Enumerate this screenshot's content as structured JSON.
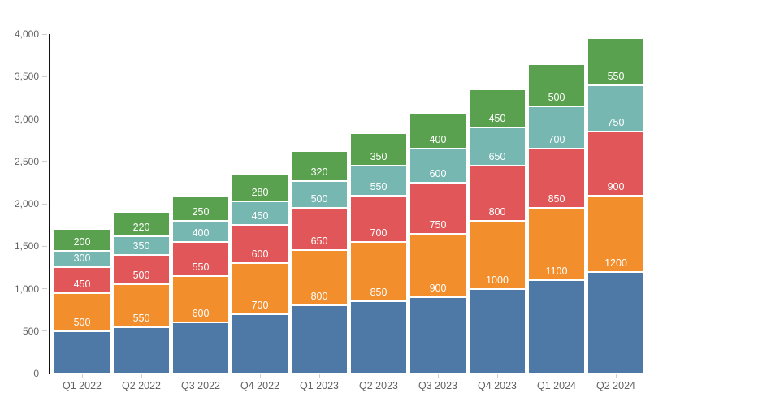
{
  "chart_data": {
    "type": "bar",
    "stacked": true,
    "title": "",
    "xlabel": "",
    "ylabel": "",
    "grid": false,
    "legend": null,
    "background_color": "#ffffff",
    "axis_line_color": "#111111",
    "tick_color": "#cfcfcf",
    "axis_text_color": "#636363",
    "value_label_color": "#ffffff",
    "ylim": [
      0,
      4000
    ],
    "ytick_interval": 500,
    "yticklabels": [
      "0",
      "500",
      "1,000",
      "1,500",
      "2,000",
      "2,500",
      "3,000",
      "3,500",
      "4,000"
    ],
    "categories": [
      "Q1 2022",
      "Q2 2022",
      "Q3 2022",
      "Q4 2022",
      "Q1 2023",
      "Q2 2023",
      "Q3 2023",
      "Q4 2023",
      "Q1 2024",
      "Q2 2024"
    ],
    "series": [
      {
        "name": "blue",
        "color": "#4e79a7",
        "values": [
          500,
          550,
          600,
          700,
          800,
          850,
          900,
          1000,
          1100,
          1200
        ],
        "value_labels_visible": true
      },
      {
        "name": "orange",
        "color": "#f28e2b",
        "values": [
          450,
          500,
          550,
          600,
          650,
          700,
          750,
          800,
          850,
          900
        ],
        "value_labels_visible": true
      },
      {
        "name": "red",
        "color": "#e15759",
        "values": [
          300,
          350,
          400,
          450,
          500,
          550,
          600,
          650,
          700,
          750
        ],
        "value_labels_visible": true
      },
      {
        "name": "teal",
        "color": "#76b7b2",
        "values": [
          200,
          220,
          250,
          280,
          320,
          350,
          400,
          450,
          500,
          550
        ],
        "value_labels_visible": true
      },
      {
        "name": "green",
        "color": "#59a14f",
        "values": [
          250,
          280,
          300,
          320,
          350,
          380,
          420,
          450,
          500,
          550
        ],
        "value_labels_visible": false
      }
    ],
    "totals": [
      1700,
      1900,
      2100,
      2350,
      2620,
      2830,
      3070,
      3350,
      3650,
      3950
    ],
    "value_label_note": "each segment's value is drawn in white just above that segment's top edge; topmost (green) labels are not visible"
  }
}
